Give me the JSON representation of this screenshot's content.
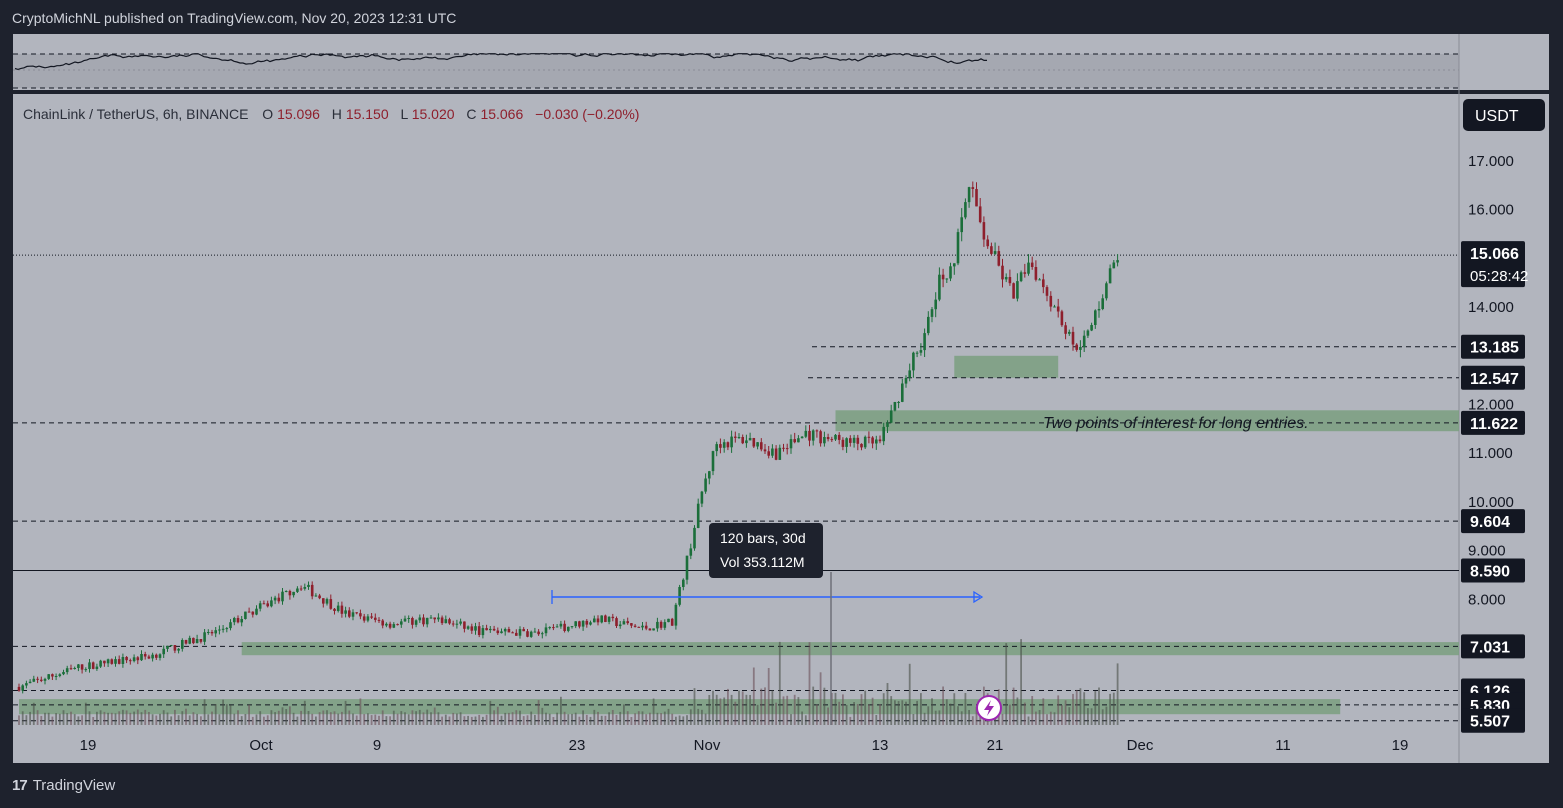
{
  "header": {
    "publisher_line": "CryptoMichNL published on TradingView.com, Nov 20, 2023 12:31 UTC"
  },
  "footer": {
    "brand": "TradingView",
    "logo_glyph": "17"
  },
  "legend": {
    "symbol": "ChainLink / TetherUS, 6h, BINANCE",
    "open_label": "O",
    "open": "15.096",
    "high_label": "H",
    "high": "15.150",
    "low_label": "L",
    "low": "15.020",
    "close_label": "C",
    "close": "15.066",
    "change": "−0.030 (−0.20%)"
  },
  "currency_button": "USDT",
  "colors": {
    "background": "#b2b5be",
    "panel": "#b2b5be",
    "frame": "#1e222d",
    "up": "#1b6e3a",
    "down": "#8e1f2c",
    "zone": "#7a9f80",
    "range_line": "#2962ff"
  },
  "chart_data": {
    "type": "candlestick",
    "symbol": "ChainLink / TetherUS",
    "interval": "6h",
    "exchange": "BINANCE",
    "price_axis": {
      "ticks": [
        "17.000",
        "16.000",
        "14.000",
        "12.000",
        "11.000",
        "10.000",
        "9.000",
        "8.000"
      ],
      "ylim": [
        5.3,
        17.3
      ]
    },
    "time_axis": {
      "ticks": [
        "19",
        "Oct",
        "9",
        "23",
        "Nov",
        "13",
        "21",
        "Dec",
        "11",
        "19"
      ]
    },
    "price_tags": [
      {
        "value": "15.066",
        "sub": "05:28:42",
        "type": "last"
      },
      {
        "value": "13.185",
        "type": "level"
      },
      {
        "value": "12.547",
        "type": "level"
      },
      {
        "value": "11.622",
        "type": "level"
      },
      {
        "value": "9.604",
        "type": "level"
      },
      {
        "value": "8.590",
        "type": "level"
      },
      {
        "value": "7.031",
        "type": "level"
      },
      {
        "value": "6.126",
        "type": "level"
      },
      {
        "value": "5.830",
        "type": "level"
      },
      {
        "value": "5.507",
        "type": "level"
      }
    ],
    "zones": [
      {
        "low": 12.55,
        "high": 13.0,
        "from": "Nov 17",
        "to": "Nov 24"
      },
      {
        "low": 11.45,
        "high": 11.88,
        "from": "Nov 9",
        "to": "Dec 21"
      },
      {
        "low": 6.85,
        "high": 7.12,
        "from": "Sep 30",
        "to": "Dec 21"
      },
      {
        "low": 5.64,
        "high": 5.95,
        "from": "Sep 15",
        "to": "Dec 13"
      }
    ],
    "annotations": {
      "note": "Two points of interest for long entries.",
      "range_bars": "120 bars, 30d",
      "range_vol": "Vol 353.112M"
    },
    "price_path": [
      [
        "Sep 15",
        6.2
      ],
      [
        "Sep 19",
        6.6
      ],
      [
        "Sep 24",
        6.85
      ],
      [
        "Sep 28",
        7.3
      ],
      [
        "Oct 2",
        7.95
      ],
      [
        "Oct 4",
        8.3
      ],
      [
        "Oct 7",
        7.7
      ],
      [
        "Oct 10",
        7.5
      ],
      [
        "Oct 13",
        7.6
      ],
      [
        "Oct 16",
        7.35
      ],
      [
        "Oct 20",
        7.3
      ],
      [
        "Oct 24",
        7.6
      ],
      [
        "Oct 27",
        7.4
      ],
      [
        "Oct 29",
        7.55
      ],
      [
        "Oct 30",
        8.8
      ],
      [
        "Oct 31",
        10.2
      ],
      [
        "Nov 1",
        11.2
      ],
      [
        "Nov 3",
        11.3
      ],
      [
        "Nov 5",
        11.0
      ],
      [
        "Nov 7",
        11.4
      ],
      [
        "Nov 10",
        11.2
      ],
      [
        "Nov 12",
        11.2
      ],
      [
        "Nov 13",
        12.0
      ],
      [
        "Nov 14",
        12.8
      ],
      [
        "Nov 15",
        13.4
      ],
      [
        "Nov 16",
        14.5
      ],
      [
        "Nov 17",
        15.0
      ],
      [
        "Nov 18",
        16.5
      ],
      [
        "Nov 19",
        15.5
      ],
      [
        "Nov 20",
        14.8
      ],
      [
        "Nov 21",
        14.2
      ],
      [
        "Nov 22",
        15.0
      ],
      [
        "Nov 24",
        13.9
      ],
      [
        "Nov 25",
        13.2
      ],
      [
        "Nov 26",
        13.4
      ],
      [
        "Nov 27",
        14.3
      ],
      [
        "Nov 28",
        15.066
      ]
    ]
  }
}
